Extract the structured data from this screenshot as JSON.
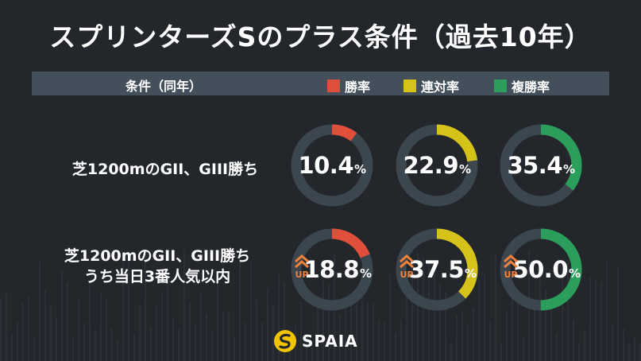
{
  "title": "スプリンターズSのプラス条件（過去10年）",
  "header": {
    "label": "条件（同年）"
  },
  "legend": [
    {
      "name": "勝率",
      "color": "#e04f3a"
    },
    {
      "name": "連対率",
      "color": "#d6c31a"
    },
    {
      "name": "複勝率",
      "color": "#2a9e5a"
    }
  ],
  "chart_data": {
    "type": "pie",
    "series_names": [
      "勝率",
      "連対率",
      "複勝率"
    ],
    "colors": [
      "#e04f3a",
      "#d6c31a",
      "#2a9e5a"
    ],
    "rows": [
      {
        "label_lines": [
          "芝1200mのGII、GIII勝ち"
        ],
        "up": false,
        "values": [
          10.4,
          22.9,
          35.4
        ],
        "value_labels": [
          "10.4",
          "22.9",
          "35.4"
        ]
      },
      {
        "label_lines": [
          "芝1200mのGII、GIII勝ち",
          "うち当日3番人気以内"
        ],
        "up": true,
        "values": [
          18.8,
          37.5,
          50.0
        ],
        "value_labels": [
          "18.8",
          "37.5",
          "50.0"
        ]
      }
    ],
    "unit": "%",
    "up_label": "UP"
  },
  "brand": {
    "name": "SPAIA"
  }
}
